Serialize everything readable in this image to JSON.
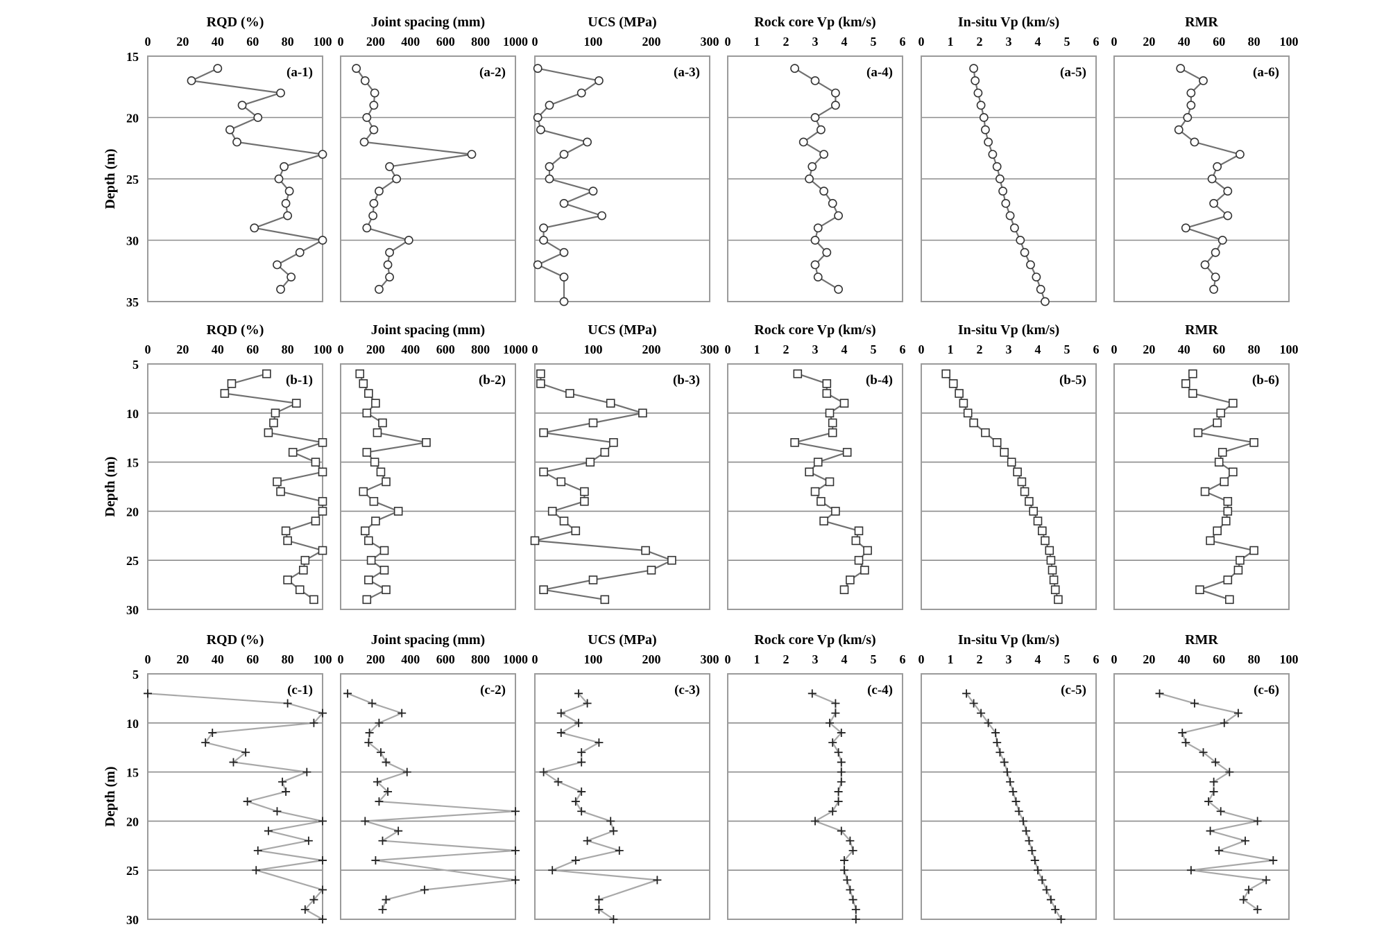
{
  "chart_data": {
    "type": "line",
    "columns": [
      {
        "key": "rqd",
        "title": "RQD (%)",
        "xlim": [
          0,
          100
        ],
        "xticks": [
          "0",
          "20",
          "40",
          "60",
          "80",
          "100"
        ]
      },
      {
        "key": "js",
        "title": "Joint spacing (mm)",
        "xlim": [
          0,
          1000
        ],
        "xticks": [
          "0",
          "200",
          "400",
          "600",
          "800",
          "1000"
        ]
      },
      {
        "key": "ucs",
        "title": "UCS (MPa)",
        "xlim": [
          0,
          300
        ],
        "xticks": [
          "0",
          "100",
          "200",
          "300"
        ]
      },
      {
        "key": "vpc",
        "title": "Rock core Vp (km/s)",
        "xlim": [
          0,
          6
        ],
        "xticks": [
          "0",
          "1",
          "2",
          "3",
          "4",
          "5",
          "6"
        ]
      },
      {
        "key": "vpi",
        "title": "In-situ Vp (km/s)",
        "xlim": [
          0,
          6
        ],
        "xticks": [
          "0",
          "1",
          "2",
          "3",
          "4",
          "5",
          "6"
        ]
      },
      {
        "key": "rmr",
        "title": "RMR",
        "xlim": [
          0,
          100
        ],
        "xticks": [
          "0",
          "20",
          "40",
          "60",
          "80",
          "100"
        ]
      }
    ],
    "rows": [
      {
        "marker": "circle",
        "line_color": "#707070",
        "ylabel": "Depth (m)",
        "ylim": [
          15,
          35
        ],
        "yticks": [
          "15",
          "20",
          "25",
          "30",
          "35"
        ],
        "panel_labels": [
          "(a-1)",
          "(a-2)",
          "(a-3)",
          "(a-4)",
          "(a-5)",
          "(a-6)"
        ],
        "depth": [
          16.0,
          17.0,
          18.0,
          19.0,
          20.0,
          21.0,
          22.0,
          23.0,
          24.0,
          25.0,
          26.0,
          27.0,
          28.0,
          29.0,
          30.0,
          31.0,
          32.0,
          33.0,
          34.0,
          35.0
        ],
        "series": {
          "rqd": [
            40,
            25,
            76,
            54,
            63,
            47,
            51,
            100,
            78,
            75,
            81,
            79,
            80,
            61,
            100,
            87,
            74,
            82,
            76,
            null
          ],
          "js": [
            90,
            140,
            195,
            190,
            150,
            190,
            135,
            750,
            280,
            320,
            220,
            190,
            185,
            150,
            390,
            280,
            270,
            280,
            220,
            null
          ],
          "ucs": [
            5,
            110,
            80,
            25,
            5,
            10,
            90,
            50,
            25,
            25,
            100,
            50,
            115,
            15,
            15,
            50,
            5,
            50,
            null,
            50
          ],
          "vpc": [
            2.3,
            3.0,
            3.7,
            3.7,
            3.0,
            3.2,
            2.6,
            3.3,
            2.9,
            2.8,
            3.3,
            3.6,
            3.8,
            3.1,
            3.0,
            3.4,
            3.0,
            3.1,
            3.8,
            null
          ],
          "vpi": [
            1.8,
            1.85,
            1.95,
            2.05,
            2.15,
            2.2,
            2.3,
            2.45,
            2.6,
            2.7,
            2.8,
            2.9,
            3.05,
            3.2,
            3.4,
            3.55,
            3.75,
            3.95,
            4.1,
            4.25
          ],
          "rmr": [
            38,
            51,
            44,
            44,
            42,
            37,
            46,
            72,
            59,
            56,
            65,
            57,
            65,
            41,
            62,
            58,
            52,
            58,
            57,
            null
          ]
        }
      },
      {
        "marker": "square",
        "line_color": "#707070",
        "ylabel": "Depth (m)",
        "ylim": [
          5,
          30
        ],
        "yticks": [
          "5",
          "10",
          "15",
          "20",
          "25",
          "30"
        ],
        "panel_labels": [
          "(b-1)",
          "(b-2)",
          "(b-3)",
          "(b-4)",
          "(b-5)",
          "(b-6)"
        ],
        "depth": [
          6,
          7,
          8,
          9,
          10,
          11,
          12,
          13,
          14,
          15,
          16,
          17,
          18,
          19,
          20,
          21,
          22,
          23,
          24,
          25,
          26,
          27,
          28,
          29,
          30
        ],
        "series": {
          "rqd": [
            68,
            48,
            44,
            85,
            73,
            72,
            69,
            100,
            83,
            96,
            100,
            74,
            76,
            100,
            100,
            96,
            79,
            80,
            100,
            90,
            89,
            80,
            87,
            95,
            null
          ],
          "js": [
            110,
            130,
            160,
            200,
            150,
            240,
            210,
            490,
            150,
            195,
            230,
            260,
            130,
            190,
            330,
            200,
            140,
            160,
            250,
            175,
            250,
            160,
            260,
            150,
            null
          ],
          "ucs": [
            10,
            10,
            60,
            130,
            185,
            100,
            15,
            135,
            120,
            95,
            15,
            45,
            85,
            85,
            30,
            50,
            70,
            0,
            190,
            235,
            200,
            100,
            15,
            120,
            null
          ],
          "vpc": [
            2.4,
            3.4,
            3.4,
            4.0,
            3.5,
            3.6,
            3.6,
            2.3,
            4.1,
            3.1,
            2.8,
            3.5,
            3.0,
            3.2,
            3.7,
            3.3,
            4.5,
            4.4,
            4.8,
            4.5,
            4.7,
            4.2,
            4.0,
            null,
            null
          ],
          "vpi": [
            0.85,
            1.1,
            1.3,
            1.45,
            1.6,
            1.8,
            2.2,
            2.6,
            2.85,
            3.1,
            3.3,
            3.45,
            3.55,
            3.7,
            3.85,
            4.0,
            4.15,
            4.25,
            4.4,
            4.45,
            4.5,
            4.55,
            4.6,
            4.7,
            null
          ],
          "rmr": [
            45,
            41,
            45,
            68,
            61,
            59,
            48,
            80,
            62,
            60,
            68,
            63,
            52,
            65,
            65,
            64,
            59,
            55,
            80,
            72,
            71,
            65,
            49,
            66,
            null
          ]
        }
      },
      {
        "marker": "plus",
        "line_color": "#a8a8a8",
        "ylabel": "Depth (m)",
        "ylim": [
          5,
          30
        ],
        "yticks": [
          "5",
          "10",
          "15",
          "20",
          "25",
          "30"
        ],
        "panel_labels": [
          "(c-1)",
          "(c-2)",
          "(c-3)",
          "(c-4)",
          "(c-5)",
          "(c-6)"
        ],
        "depth": [
          7,
          8,
          9,
          10,
          11,
          12,
          13,
          14,
          15,
          16,
          17,
          18,
          19,
          20,
          21,
          22,
          23,
          24,
          25,
          26,
          27,
          28,
          29,
          30
        ],
        "series": {
          "rqd": [
            0,
            80,
            100,
            95,
            37,
            33,
            56,
            49,
            91,
            77,
            79,
            57,
            74,
            100,
            69,
            92,
            63,
            100,
            62,
            null,
            100,
            95,
            90,
            100
          ],
          "js": [
            40,
            180,
            350,
            220,
            165,
            160,
            230,
            260,
            380,
            210,
            270,
            220,
            1000,
            140,
            330,
            240,
            1000,
            200,
            null,
            1000,
            480,
            260,
            240,
            null
          ],
          "ucs": [
            75,
            90,
            45,
            75,
            45,
            110,
            80,
            80,
            15,
            40,
            80,
            70,
            80,
            130,
            135,
            90,
            145,
            70,
            30,
            210,
            null,
            110,
            110,
            135
          ],
          "vpc": [
            2.9,
            3.7,
            3.7,
            3.5,
            3.9,
            3.6,
            3.8,
            3.9,
            3.9,
            3.9,
            3.8,
            3.8,
            3.6,
            3.0,
            3.9,
            4.2,
            4.3,
            4.0,
            4.0,
            4.1,
            4.2,
            4.3,
            4.4,
            4.4
          ],
          "vpi": [
            1.55,
            1.8,
            2.05,
            2.3,
            2.55,
            2.6,
            2.7,
            2.85,
            2.95,
            3.05,
            3.15,
            3.25,
            3.35,
            3.5,
            3.6,
            3.7,
            3.8,
            3.9,
            4.0,
            4.15,
            4.3,
            4.45,
            4.6,
            4.8
          ],
          "rmr": [
            26,
            46,
            71,
            63,
            39,
            41,
            51,
            58,
            66,
            57,
            57,
            54,
            61,
            82,
            55,
            75,
            60,
            91,
            44,
            87,
            77,
            74,
            82,
            null
          ]
        }
      }
    ]
  }
}
